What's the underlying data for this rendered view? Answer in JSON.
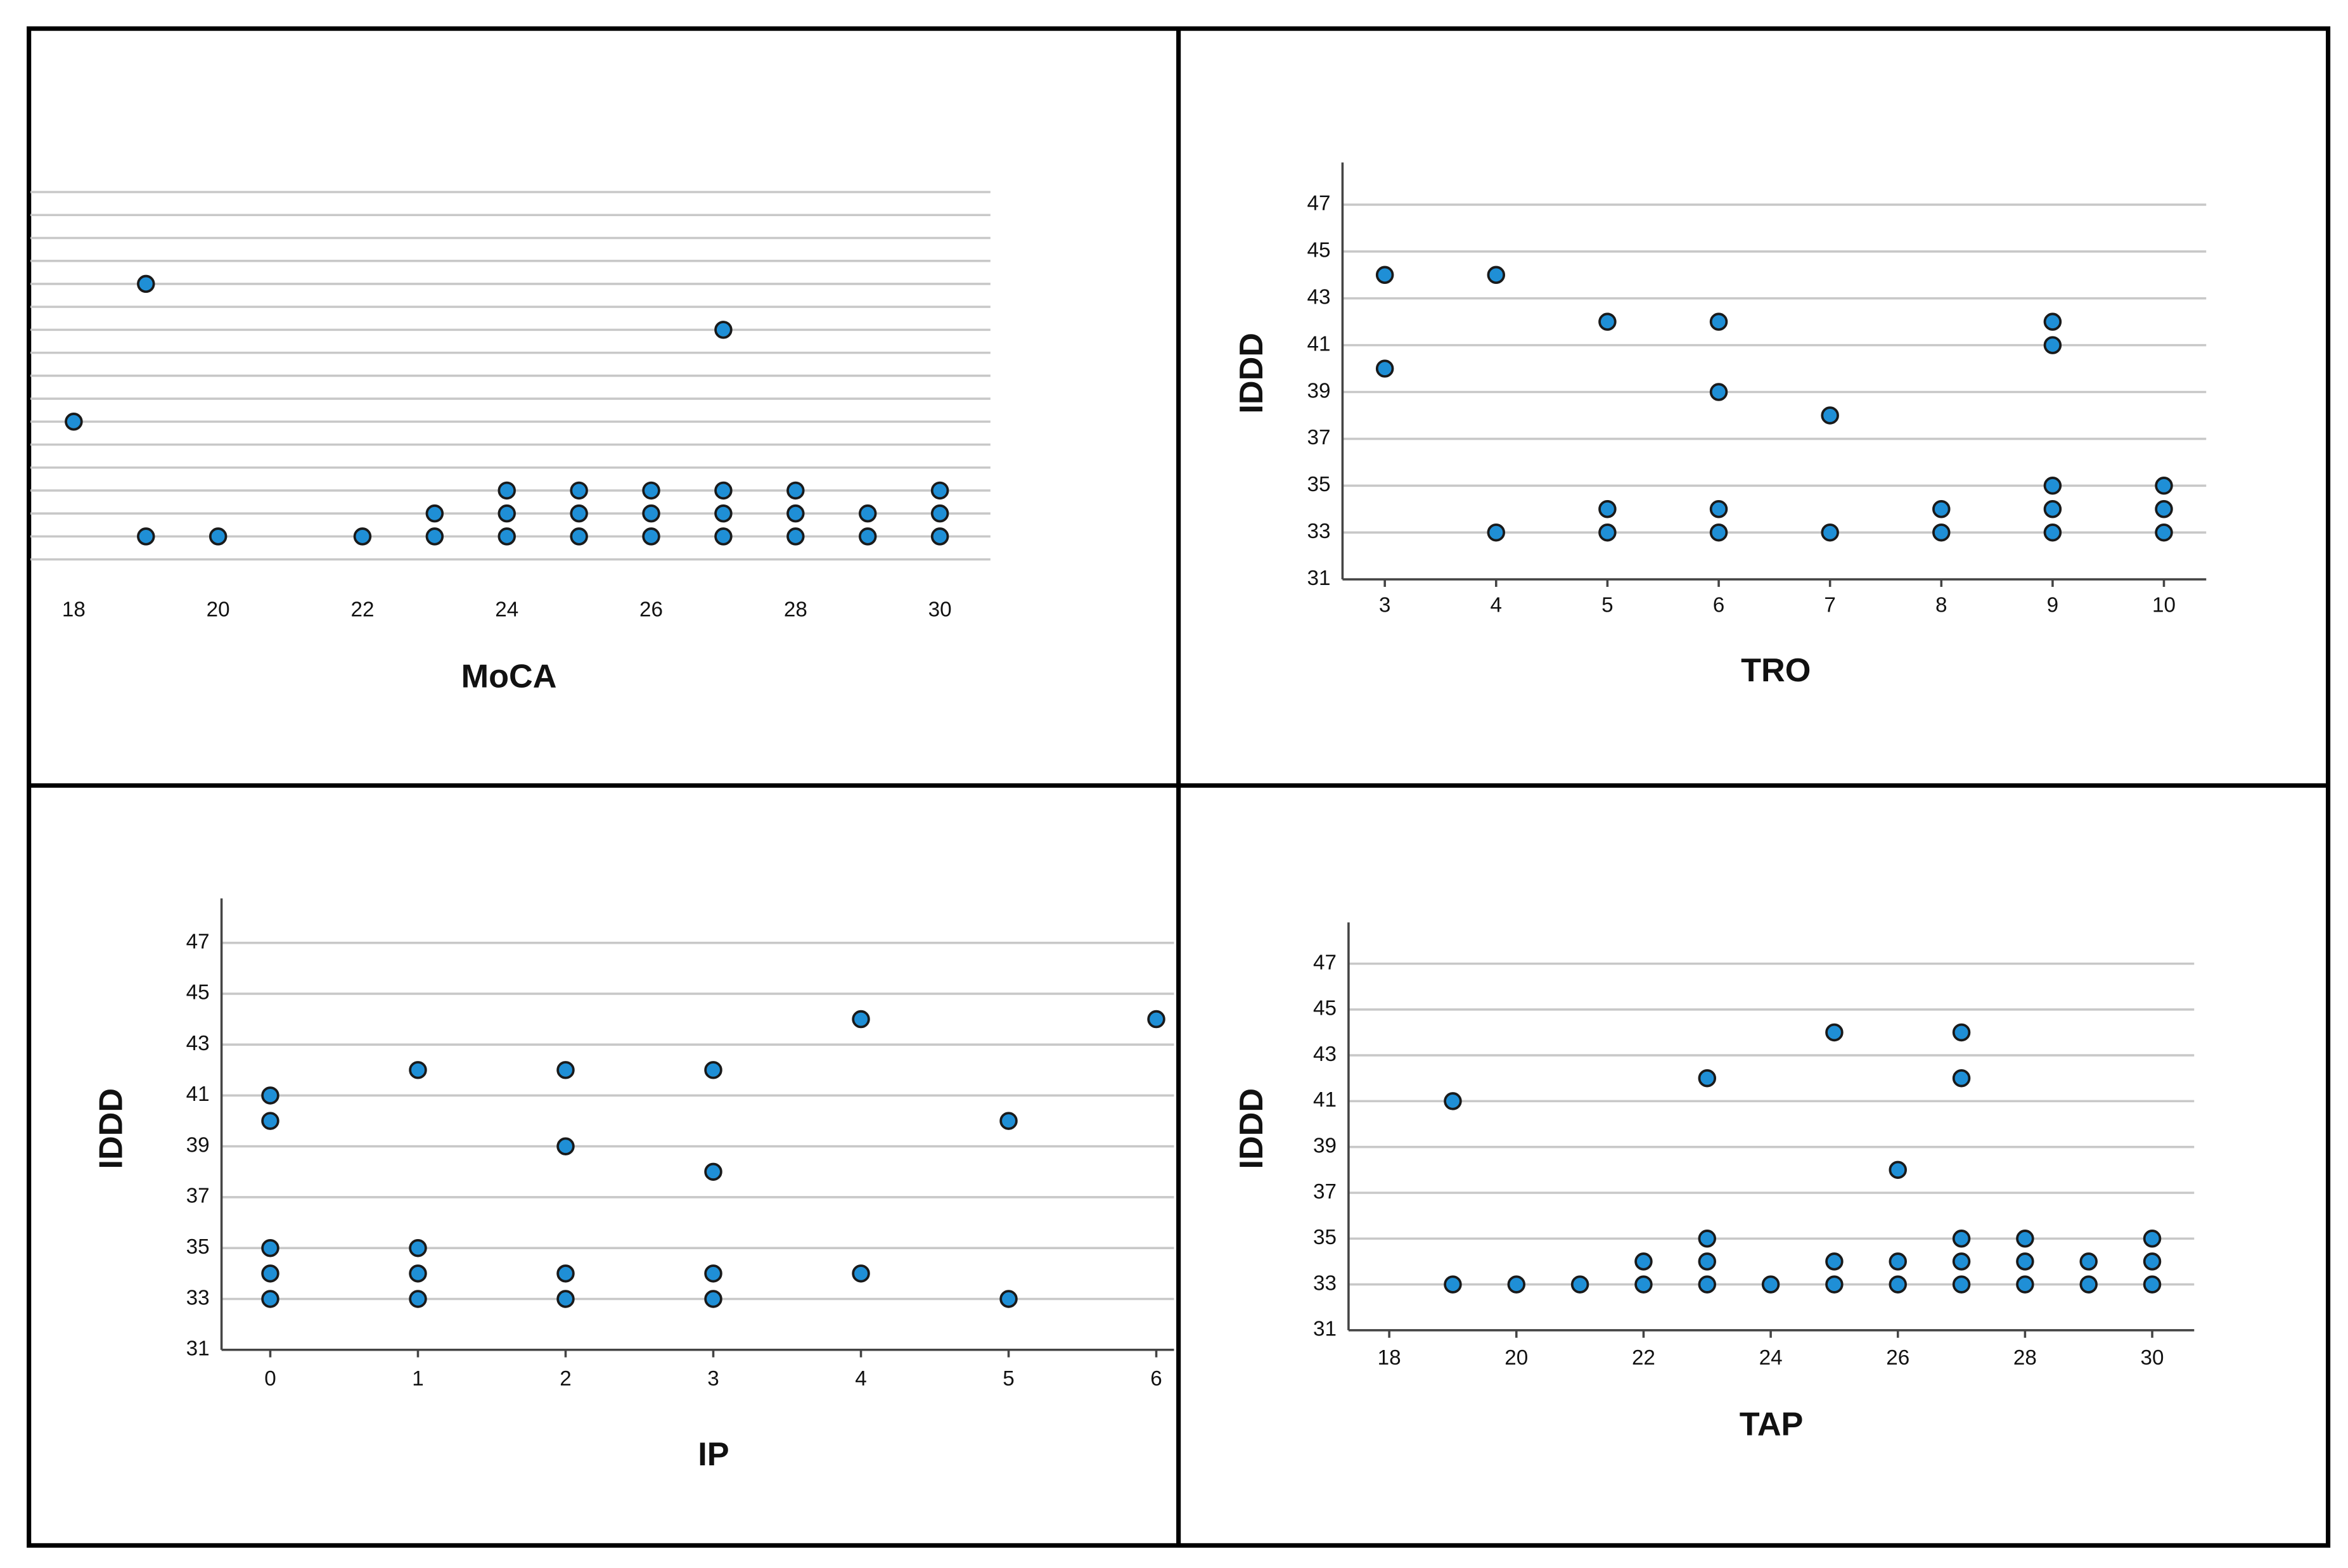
{
  "chart_data": [
    {
      "type": "scatter",
      "x_label": "MoCA",
      "color": "#1f8fd6",
      "edge_color": "#1a1a1a",
      "axes": false,
      "xlim": [
        17.4,
        30.7
      ],
      "ylim": [
        31,
        48.5
      ],
      "xticks": [
        18,
        20,
        22,
        24,
        26,
        28,
        30
      ],
      "ygrid": [
        32,
        33,
        34,
        35,
        36,
        37,
        38,
        39,
        40,
        41,
        42,
        43,
        44,
        45,
        46,
        47,
        48
      ],
      "x": [
        18,
        19,
        19,
        20,
        22,
        23,
        23,
        24,
        24,
        24,
        25,
        25,
        25,
        26,
        26,
        26,
        27,
        27,
        27,
        27,
        28,
        28,
        28,
        29,
        29,
        30,
        30,
        30
      ],
      "values": [
        38,
        44,
        33,
        33,
        33,
        34,
        33,
        35,
        34,
        33,
        35,
        34,
        33,
        35,
        34,
        33,
        42,
        35,
        34,
        33,
        35,
        34,
        33,
        34,
        33,
        35,
        34,
        33
      ]
    },
    {
      "type": "scatter",
      "x_label": "TRO",
      "y_label": "IDDD",
      "color": "#1f8fd6",
      "edge_color": "#1a1a1a",
      "axes": true,
      "grid": true,
      "xlim": [
        2.62,
        10.38
      ],
      "ylim": [
        31,
        48.8
      ],
      "xticks": [
        3,
        4,
        5,
        6,
        7,
        8,
        9,
        10
      ],
      "yticks": [
        31,
        33,
        35,
        37,
        39,
        41,
        43,
        45,
        47
      ],
      "x": [
        3,
        3,
        4,
        4,
        5,
        5,
        5,
        6,
        6,
        6,
        6,
        7,
        7,
        8,
        8,
        9,
        9,
        9,
        9,
        9,
        10,
        10,
        10
      ],
      "values": [
        44,
        40,
        44,
        33,
        42,
        34,
        33,
        42,
        39,
        34,
        33,
        38,
        33,
        34,
        33,
        42,
        41,
        35,
        34,
        33,
        35,
        34,
        33
      ]
    },
    {
      "type": "scatter",
      "x_label": "IP",
      "y_label": "IDDD",
      "color": "#1f8fd6",
      "edge_color": "#1a1a1a",
      "axes": true,
      "grid": true,
      "xlim": [
        -0.33,
        6.12
      ],
      "ylim": [
        31,
        48.75
      ],
      "xticks": [
        0,
        1,
        2,
        3,
        4,
        5,
        6
      ],
      "yticks": [
        31,
        33,
        35,
        37,
        39,
        41,
        43,
        45,
        47
      ],
      "x": [
        0,
        0,
        0,
        0,
        0,
        1,
        1,
        1,
        1,
        2,
        2,
        2,
        2,
        3,
        3,
        3,
        3,
        4,
        4,
        5,
        5,
        6
      ],
      "values": [
        41,
        40,
        35,
        34,
        33,
        42,
        35,
        34,
        33,
        42,
        39,
        34,
        33,
        42,
        38,
        34,
        33,
        44,
        34,
        40,
        33,
        44
      ]
    },
    {
      "type": "scatter",
      "x_label": "TAP",
      "y_label": "IDDD",
      "color": "#1f8fd6",
      "edge_color": "#1a1a1a",
      "axes": true,
      "grid": true,
      "xlim": [
        17.36,
        30.66
      ],
      "ylim": [
        31,
        48.8
      ],
      "xticks": [
        18,
        20,
        22,
        24,
        26,
        28,
        30
      ],
      "yticks": [
        31,
        33,
        35,
        37,
        39,
        41,
        43,
        45,
        47
      ],
      "x": [
        19,
        19,
        20,
        21,
        22,
        22,
        23,
        23,
        23,
        23,
        24,
        25,
        25,
        25,
        26,
        26,
        26,
        27,
        27,
        27,
        27,
        27,
        28,
        28,
        28,
        29,
        29,
        30,
        30,
        30
      ],
      "values": [
        41,
        33,
        33,
        33,
        34,
        33,
        42,
        35,
        34,
        33,
        33,
        44,
        34,
        33,
        38,
        34,
        33,
        44,
        42,
        35,
        34,
        33,
        35,
        34,
        33,
        34,
        33,
        35,
        34,
        33
      ]
    }
  ]
}
